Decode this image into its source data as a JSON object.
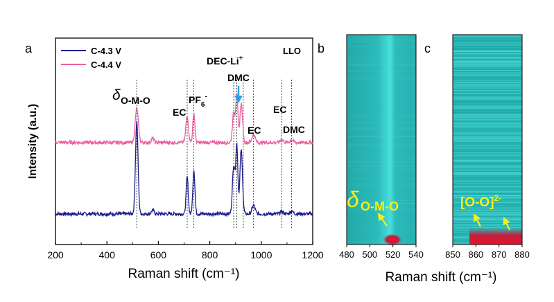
{
  "figure": {
    "panel_a_label": "a",
    "panel_b_label": "b",
    "panel_c_label": "c"
  },
  "colors": {
    "series_c43": "#1c1c8c",
    "series_c44": "#e8609e",
    "arrow_blue": "#29a3e6",
    "annotation_yellow": "#f5f01c",
    "heatmap_base": "#2ab9b9",
    "heatmap_hot": "#e8102a"
  },
  "chart_data": [
    {
      "type": "line",
      "xlabel": "Raman shift (cm⁻¹)",
      "ylabel": "Intensity (a.u.)",
      "xlim": [
        200,
        1200
      ],
      "xticks": [
        "200",
        "400",
        "600",
        "800",
        "1000",
        "1200"
      ],
      "yticks": "none",
      "legend_position": "top-left",
      "corner_label": "LLO",
      "series": [
        {
          "name": "C-4.3 V",
          "offset": 0,
          "baseline": 0.08,
          "peaks": [
            [
              516,
              1.3,
              5
            ],
            [
              578,
              0.05,
              5
            ],
            [
              712,
              0.52,
              4
            ],
            [
              738,
              0.62,
              4
            ],
            [
              893,
              0.68,
              5
            ],
            [
              905,
              0.95,
              4
            ],
            [
              922,
              0.9,
              5
            ],
            [
              970,
              0.12,
              6
            ],
            [
              1080,
              0.03,
              6
            ],
            [
              1118,
              0.04,
              6
            ]
          ]
        },
        {
          "name": "C-4.4 V",
          "offset": 1.0,
          "baseline": 0.08,
          "peaks": [
            [
              516,
              0.48,
              6
            ],
            [
              578,
              0.06,
              5
            ],
            [
              712,
              0.38,
              5
            ],
            [
              738,
              0.42,
              4
            ],
            [
              893,
              0.42,
              5
            ],
            [
              905,
              0.68,
              4
            ],
            [
              922,
              0.55,
              5
            ],
            [
              970,
              0.12,
              6
            ],
            [
              1080,
              0.04,
              6
            ],
            [
              1118,
              0.04,
              6
            ]
          ]
        }
      ],
      "reference_lines": [
        516,
        712,
        738,
        893,
        905,
        930,
        970,
        1080,
        1118
      ],
      "annotations": {
        "delta_symbol": "δ",
        "omo_subscript": "O-M-O",
        "ec_1": "EC",
        "pf6_base": "PF",
        "pf6_sub": "6",
        "pf6_sup": "-",
        "dec_li": "DEC-Li",
        "dec_li_sup": "+",
        "dmc_1": "DMC",
        "ec_2": "EC",
        "ec_3": "EC",
        "dmc_2": "DMC"
      }
    },
    {
      "type": "heatmap",
      "xlim": [
        480,
        540
      ],
      "xticks": [
        "480",
        "500",
        "520",
        "540"
      ],
      "band_center": 516,
      "hot_spot_center": 519,
      "annotation_delta": "δ",
      "annotation_sub": "O-M-O"
    },
    {
      "type": "heatmap",
      "xlim": [
        850,
        880
      ],
      "xticks": [
        "850",
        "860",
        "870",
        "880"
      ],
      "hot_band_range": [
        857,
        880
      ],
      "annotation_text": "[O-O]",
      "annotation_sup": "2-"
    }
  ],
  "shared_xlabel_bc": "Raman shift (cm⁻¹)"
}
